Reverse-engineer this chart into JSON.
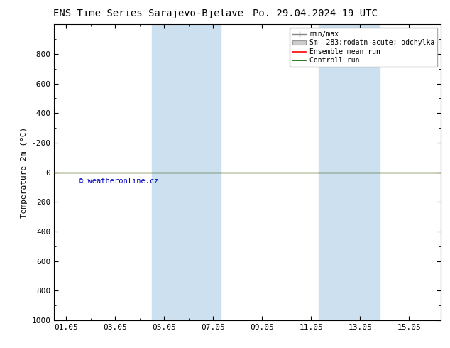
{
  "title_left": "ENS Time Series Sarajevo-Bjelave",
  "title_right": "Po. 29.04.2024 19 UTC",
  "ylabel": "Temperature 2m (°C)",
  "ylim_top": -1000,
  "ylim_bottom": 1000,
  "yticks": [
    -800,
    -600,
    -400,
    -200,
    0,
    200,
    400,
    600,
    800,
    1000
  ],
  "xtick_labels": [
    "01.05",
    "03.05",
    "05.05",
    "07.05",
    "09.05",
    "11.05",
    "13.05",
    "15.05"
  ],
  "xtick_positions": [
    0,
    2,
    4,
    6,
    8,
    10,
    12,
    14
  ],
  "xlim_min": -0.5,
  "xlim_max": 15.3,
  "shade_bands": [
    {
      "x_start": 3.5,
      "x_end": 5.5,
      "color": "#cce0f0"
    },
    {
      "x_start": 5.5,
      "x_end": 6.5,
      "color": "#cce0f0"
    },
    {
      "x_start": 10.3,
      "x_end": 11.5,
      "color": "#cce0f0"
    },
    {
      "x_start": 11.5,
      "x_end": 12.8,
      "color": "#cce0f0"
    }
  ],
  "control_run_color": "#006400",
  "ensemble_mean_color": "#ff0000",
  "copyright_text": "© weatheronline.cz",
  "copyright_color": "#0000bb",
  "background_color": "#ffffff",
  "plot_bg_color": "#ffffff",
  "legend_labels": [
    "min/max",
    "Sm  283;rodatn acute; odchylka",
    "Ensemble mean run",
    "Controll run"
  ],
  "legend_colors": [
    "#aaaaaa",
    "#cccccc",
    "#ff0000",
    "#006400"
  ],
  "title_fontsize": 10,
  "axis_fontsize": 8,
  "tick_fontsize": 8,
  "legend_fontsize": 7
}
